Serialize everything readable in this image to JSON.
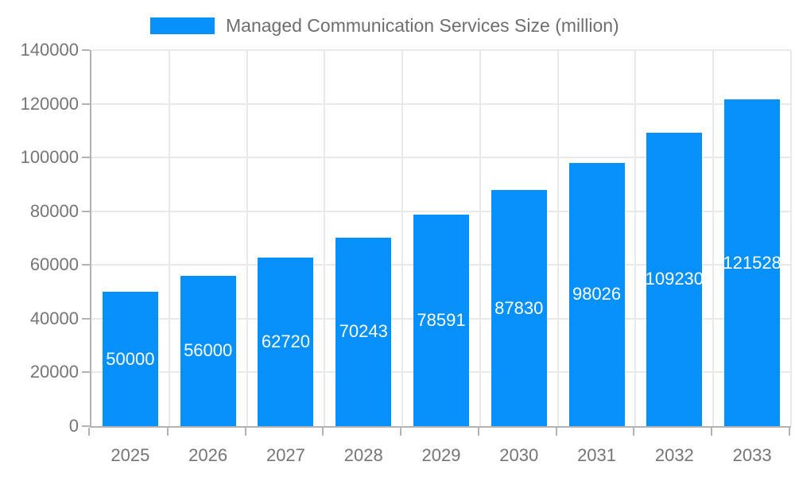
{
  "chart_data": {
    "type": "bar",
    "title": "Managed Communication Services Size (million)",
    "categories": [
      "2025",
      "2026",
      "2027",
      "2028",
      "2029",
      "2030",
      "2031",
      "2032",
      "2033"
    ],
    "values": [
      50000,
      56000,
      62720,
      70243,
      78591,
      87830,
      98026,
      109230,
      121528
    ],
    "bar_labels": [
      "50000",
      "56000",
      "62720",
      "70243",
      "78591",
      "87830",
      "98026",
      "109230",
      "121528"
    ],
    "xlabel": "",
    "ylabel": "",
    "ylim": [
      0,
      140000
    ],
    "yticks": [
      0,
      20000,
      40000,
      60000,
      80000,
      100000,
      120000,
      140000
    ],
    "ytick_labels": [
      "0",
      "20000",
      "40000",
      "60000",
      "80000",
      "100000",
      "120000",
      "140000"
    ],
    "grid": "on",
    "legend_position": "top"
  },
  "colors": {
    "bar": "#0590FA",
    "bar_label": "#ffffff",
    "legend_swatch": "#0590FA",
    "title_text": "#6e6e6e",
    "axis_text": "#757575",
    "gridline": "#e9e9e9",
    "axis_line": "#b3b3b3",
    "background": "#ffffff"
  }
}
